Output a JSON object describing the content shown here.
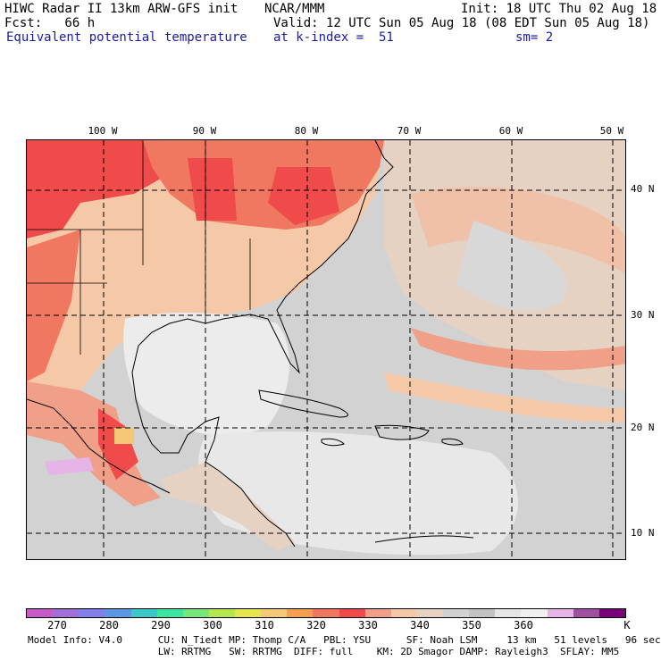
{
  "header": {
    "left_line1": "HIWC Radar II 13km ARW-GFS init",
    "left_line2": "Fcst:   66 h",
    "left_line3": "Equivalent potential temperature",
    "center_line1": "NCAR/MMM",
    "right_line1": "Init: 18 UTC Thu 02 Aug 18",
    "right_line2": "Valid: 12 UTC Sun 05 Aug 18 (08 EDT Sun 05 Aug 18)",
    "center_line3": "at k-index =  51",
    "right_line3": "sm= 2"
  },
  "map": {
    "region": "Gulf of Mexico, Caribbean and western Atlantic",
    "lon_labels": [
      "100 W",
      "90 W",
      "80 W",
      "70 W",
      "60 W",
      "50 W"
    ],
    "lat_labels": [
      "40 N",
      "30 N",
      "20 N",
      "10 N"
    ],
    "field": "equivalent potential temperature"
  },
  "colorbar": {
    "unit": "K",
    "labels": [
      "270",
      "280",
      "290",
      "300",
      "310",
      "320",
      "330",
      "340",
      "350",
      "360"
    ],
    "colors": [
      "#c65ac9",
      "#a070d8",
      "#8080e8",
      "#5a98e6",
      "#3cc8c8",
      "#3ce6a0",
      "#78e678",
      "#b4e650",
      "#e6e650",
      "#f5c878",
      "#f5a050",
      "#f07860",
      "#f04b4b",
      "#f0a088",
      "#f5c8a8",
      "#e6d2c3",
      "#d2d2d2",
      "#c3c3c3",
      "#e6e6e6",
      "#f0f0f0",
      "#e6b4e6",
      "#a050a0",
      "#780078"
    ]
  },
  "footer": {
    "line1": "Model Info: V4.0      CU: N_Tiedt MP: Thomp C/A   PBL: YSU      SF: Noah LSM     13 km   51 levels   96 sec",
    "line2": "                      LW: RRTMG   SW: RRTMG  DIFF: full    KM: 2D Smagor DAMP: Rayleigh3  SFLAY: MM5"
  }
}
